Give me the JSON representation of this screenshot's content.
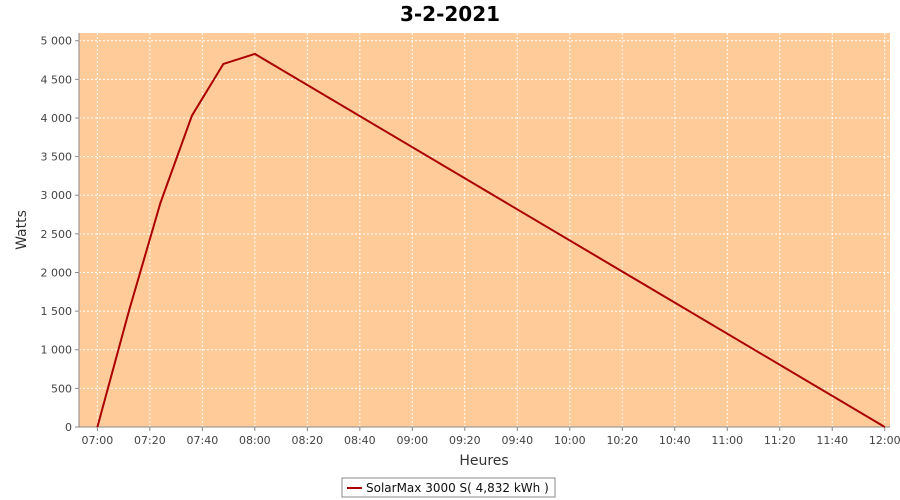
{
  "chart_data": {
    "type": "line",
    "title": "3-2-2021",
    "xlabel": "Heures",
    "ylabel": "Watts",
    "x_ticks": [
      "07:00",
      "07:20",
      "07:40",
      "08:00",
      "08:20",
      "08:40",
      "09:00",
      "09:20",
      "09:40",
      "10:00",
      "10:20",
      "10:40",
      "11:00",
      "11:20",
      "11:40",
      "12:00"
    ],
    "y_ticks": [
      "0",
      "500",
      "1 000",
      "1 500",
      "2 000",
      "2 500",
      "3 000",
      "3 500",
      "4 000",
      "4 500",
      "5 000"
    ],
    "y_tick_values": [
      0,
      500,
      1000,
      1500,
      2000,
      2500,
      3000,
      3500,
      4000,
      4500,
      5000
    ],
    "xlim": [
      "06:53",
      "12:02"
    ],
    "ylim": [
      0,
      5100
    ],
    "grid": true,
    "legend_position": "bottom-center",
    "series": [
      {
        "name": "SolarMax 3000 S( 4,832 kWh )",
        "color": "#aa0000",
        "x": [
          "07:00",
          "07:12",
          "07:24",
          "07:36",
          "07:48",
          "08:00",
          "12:00"
        ],
        "y": [
          0,
          1500,
          2900,
          4030,
          4700,
          4830,
          0
        ]
      }
    ]
  },
  "colors": {
    "plot_background": "#ffcc99",
    "grid": "#ffffff",
    "axis": "#888888"
  }
}
